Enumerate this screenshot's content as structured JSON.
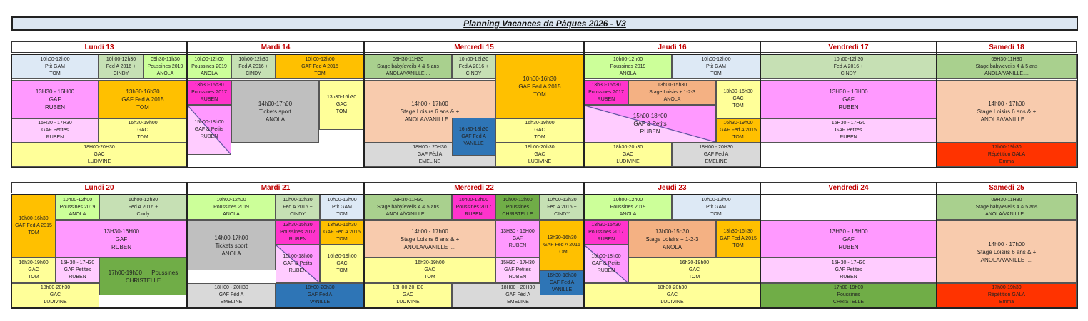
{
  "title": "Planning Vacances de Pâques 2026 - V3",
  "colors": {
    "day_header_text": "#c00000",
    "title_bg": "#dce6f1"
  },
  "weeks": [
    {
      "days": [
        "Lundi 13",
        "Mardi 14",
        "Mercredi 15",
        "Jeudi 16",
        "Vendredi 17",
        "Samedi 18"
      ],
      "blocks": [
        {
          "lines": [
            "10h00-12h00",
            "Ptit GAM",
            "TOM"
          ],
          "color": "#dde9f5"
        },
        {
          "lines": [
            "10h00-12h30",
            "Fed A 2016 +",
            "CINDY"
          ],
          "color": "#c6e0b4"
        },
        {
          "lines": [
            "09h30-11h30",
            "Poussines 2019",
            "ANOLA"
          ],
          "color": "#ccff99"
        },
        {
          "lines": [
            "13H30 - 16H00",
            "GAF",
            "RUBEN"
          ],
          "color": "#ff99ff"
        },
        {
          "lines": [
            "13h30-16h30",
            "GAF Fed A 2015",
            "TOM"
          ],
          "color": "#ffc000"
        },
        {
          "lines": [
            "15H30 - 17H30",
            "GAF Petites",
            "RUBEN"
          ],
          "color": "#ffccff"
        },
        {
          "lines": [
            "16h30-19h00",
            "GAC",
            "TOM"
          ],
          "color": "#ffff99"
        },
        {
          "lines": [
            "18H00-20H30",
            "GAC",
            "LUDIVINE"
          ],
          "color": "#ffff99"
        },
        {
          "lines": [
            "10h00-12h00",
            "Poussines 2019",
            "ANOLA"
          ],
          "color": "#ccff99"
        },
        {
          "lines": [
            "10h00-12h30",
            "Fed A 2016 +",
            "CINDY"
          ],
          "color": "#c6e0b4"
        },
        {
          "lines": [
            "10h00-12h00",
            "GAF Fed A 2015",
            "TOM"
          ],
          "color": "#ffc000"
        },
        {
          "lines": [
            "13h30-15h30",
            "Poussines 2017",
            "RUBEN"
          ],
          "color": "#ff33cc"
        },
        {
          "lines": [
            "15h00-18h00",
            "GAF & Petits",
            "RUBEN"
          ],
          "color": "diagonal"
        },
        {
          "lines": [
            "14h00-17h00",
            "Tickets sport",
            "ANOLA"
          ],
          "color": "#bfbfbf"
        },
        {
          "lines": [
            "13h30-16h30",
            "GAC",
            "TOM"
          ],
          "color": "#ffff99"
        },
        {
          "lines": [
            "09H30-11H30",
            "Stage baby/eveils 4 & 5 ans",
            "ANOLA/VANILLE...."
          ],
          "color": "#a9d08e"
        },
        {
          "lines": [
            "10h00-12h30",
            "Fed A 2016 +",
            "CINDY"
          ],
          "color": "#c6e0b4"
        },
        {
          "lines": [
            "10h00-16h30",
            "GAF Fed A 2015",
            "TOM"
          ],
          "color": "#ffc000"
        },
        {
          "lines": [
            "14h00 - 17h00",
            "Stage Loisirs 6 ans & +",
            "ANOLA/VANILLE...."
          ],
          "color": "#f8cbad"
        },
        {
          "lines": [
            "18H00 - 20H30",
            "GAF Féd A",
            "EMELINE"
          ],
          "color": "#d9d9d9"
        },
        {
          "lines": [
            "16h30-18h30",
            "GAF Fed A",
            "VANILLE"
          ],
          "color": "#2e75b6"
        },
        {
          "lines": [
            "16h30-19h00",
            "GAC",
            "TOM"
          ],
          "color": "#ffff99"
        },
        {
          "lines": [
            "18h00-20h30",
            "GAC",
            "LUDIVINE"
          ],
          "color": "#ffff99"
        },
        {
          "lines": [
            "10h00-12h00",
            "Poussines 2019",
            "ANOLA"
          ],
          "color": "#ccff99"
        },
        {
          "lines": [
            "10h00-12h00",
            "Ptit GAM",
            "TOM"
          ],
          "color": "#dde9f5"
        },
        {
          "lines": [
            "13h30-15h30",
            "Poussines 2017",
            "RUBEN"
          ],
          "color": "#ff33cc"
        },
        {
          "lines": [
            "13h00-15h30",
            "Stage Loisirs + 1-2-3",
            "ANOLA"
          ],
          "color": "#f4b183"
        },
        {
          "lines": [
            "15h00-18h00",
            "GAF & Petits",
            "RUBEN"
          ],
          "color": "diagonal"
        },
        {
          "lines": [
            "13h30-16h30",
            "GAC",
            "TOM"
          ],
          "color": "#ffff99"
        },
        {
          "lines": [
            "16h30-19h00",
            "GAF Fed A 2015",
            "TOM"
          ],
          "color": "#ffc000"
        },
        {
          "lines": [
            "18h30-20h30",
            "GAC",
            "LUDIVINE"
          ],
          "color": "#ffff99"
        },
        {
          "lines": [
            "18H00 - 20H30",
            "GAF Féd A",
            "EMELINE"
          ],
          "color": "#d9d9d9"
        },
        {
          "lines": [
            "10h00-12h30",
            "Fed A 2016 +",
            "CINDY"
          ],
          "color": "#c6e0b4"
        },
        {
          "lines": [
            "13H30 - 16H00",
            "GAF",
            "RUBEN"
          ],
          "color": "#ff99ff"
        },
        {
          "lines": [
            "15H30 - 17H30",
            "GAF Petites",
            "RUBEN"
          ],
          "color": "#ffccff"
        },
        {
          "lines": [
            "09H30-11H30",
            "Stage baby/eveils 4 & 5 ans",
            "ANOLA/VANILLE...."
          ],
          "color": "#a9d08e"
        },
        {
          "lines": [
            "14h00 - 17h00",
            "Stage Loisirs 6 ans & +",
            "ANOLA/VANILLE ...."
          ],
          "color": "#f8cbad"
        },
        {
          "lines": [
            "17h00-19h30",
            "Répétition GALA",
            "Emma"
          ],
          "color": "#ff3300"
        }
      ]
    },
    {
      "days": [
        "Lundi 20",
        "Mardi 21",
        "Mercredi 22",
        "Jeudi 23",
        "Vendredi 24",
        "Samedi 25"
      ],
      "blocks": [
        {
          "lines": [
            "10h00-16h30",
            "GAF Fed A 2015",
            "TOM"
          ],
          "color": "#ffc000"
        },
        {
          "lines": [
            "10h00-12h00",
            "Poussines 2019",
            "ANOLA"
          ],
          "color": "#ccff99"
        },
        {
          "lines": [
            "10h00-12h30",
            "Fed A 2016 +",
            "Cindy"
          ],
          "color": "#c6e0b4"
        },
        {
          "lines": [
            "13H30-16H00",
            "GAF",
            "RUBEN"
          ],
          "color": "#ff99ff"
        },
        {
          "lines": [
            "16h30-19h00",
            "GAC",
            "TOM"
          ],
          "color": "#ffff99"
        },
        {
          "lines": [
            "15H30 - 17H30",
            "GAF Petites",
            "RUBEN"
          ],
          "color": "#ffccff"
        },
        {
          "lines": [
            "17h00-19h00      Poussines",
            "CHRISTELLE"
          ],
          "color": "#70ad47"
        },
        {
          "lines": [
            "18h00-20h30",
            "GAC",
            "LUDIVINE"
          ],
          "color": "#ffff99"
        },
        {
          "lines": [
            "10h00-12h00",
            "Poussines 2019",
            "ANOLA"
          ],
          "color": "#ccff99"
        },
        {
          "lines": [
            "10h00-12h30",
            "Fed A 2016 +",
            "CINDY"
          ],
          "color": "#c6e0b4"
        },
        {
          "lines": [
            "10h00-12h00",
            "Ptit GAM",
            "TOM"
          ],
          "color": "#dde9f5"
        },
        {
          "lines": [
            "14h00-17h00",
            "Tickets sport",
            "ANOLA"
          ],
          "color": "#bfbfbf"
        },
        {
          "lines": [
            "13h30-15h30",
            "Poussines 2017",
            "RUBEN"
          ],
          "color": "#ff33cc"
        },
        {
          "lines": [
            "15h00-18h00",
            "GAF & Petits",
            "RUBEN"
          ],
          "color": "diagonal"
        },
        {
          "lines": [
            "13h30-16h30",
            "GAF Fed A 2015",
            "TOM"
          ],
          "color": "#ffc000"
        },
        {
          "lines": [
            "16h30-19h00",
            "GAC",
            "TOM"
          ],
          "color": "#ffff99"
        },
        {
          "lines": [
            "18H00 - 20H30",
            "GAF Féd A",
            "EMELINE"
          ],
          "color": "#d9d9d9"
        },
        {
          "lines": [
            "18h00-20h30",
            "GAF Fed A",
            "VANILLE"
          ],
          "color": "#2e75b6"
        },
        {
          "lines": [
            "09H30-11H30",
            "Stage baby/eveils 4 & 5 ans",
            "ANOLA/VANILLE...."
          ],
          "color": "#a9d08e"
        },
        {
          "lines": [
            "10h00-12h00",
            "Poussines 2017",
            "RUBEN"
          ],
          "color": "#ff33cc"
        },
        {
          "lines": [
            "10h00-12h00",
            "Poussines",
            "CHRISTELLE"
          ],
          "color": "#70ad47"
        },
        {
          "lines": [
            "10h00-12h30",
            "Fed A 2016 +",
            "CINDY"
          ],
          "color": "#c6e0b4"
        },
        {
          "lines": [
            "14h00 - 17h00",
            "Stage Loisirs 6 ans & +",
            "ANOLA/VANILLE ...."
          ],
          "color": "#f8cbad"
        },
        {
          "lines": [
            "13H30 - 16H00",
            "GAF",
            "RUBEN"
          ],
          "color": "#ff99ff"
        },
        {
          "lines": [
            "16h30-19h00",
            "GAC",
            "TOM"
          ],
          "color": "#ffff99"
        },
        {
          "lines": [
            "15H30 - 17H30",
            "GAF Petites",
            "RUBEN"
          ],
          "color": "#ffccff"
        },
        {
          "lines": [
            "18H00 - 20H30",
            "GAF Féd A",
            "EMELINE"
          ],
          "color": "#d9d9d9"
        },
        {
          "lines": [
            "13h30-16h30",
            "GAF Fed A 2015",
            "TOM"
          ],
          "color": "#ffc000"
        },
        {
          "lines": [
            "16h30-18h30",
            "GAF Fed A",
            "VANILLE"
          ],
          "color": "#2e75b6"
        },
        {
          "lines": [
            "18H00-20H30",
            "GAC",
            "LUDIVINE"
          ],
          "color": "#ffff99"
        },
        {
          "lines": [
            "10h00-12h00",
            "Poussines 2019",
            "ANOLA"
          ],
          "color": "#ccff99"
        },
        {
          "lines": [
            "10h00-12h00",
            "Ptit GAM",
            "TOM"
          ],
          "color": "#dde9f5"
        },
        {
          "lines": [
            "13h30-15h30",
            "Poussines 2017",
            "RUBEN"
          ],
          "color": "#ff33cc"
        },
        {
          "lines": [
            "15h00-18h00",
            "GAF & Petits",
            "RUBEN"
          ],
          "color": "diagonal"
        },
        {
          "lines": [
            "13h00-15h30",
            "Stage Loisirs + 1-2-3",
            "ANOLA"
          ],
          "color": "#f4b183"
        },
        {
          "lines": [
            "13h30-16h30",
            "GAF Fed A 2015",
            "TOM"
          ],
          "color": "#ffc000"
        },
        {
          "lines": [
            "16h30-19h00",
            "GAC",
            "TOM"
          ],
          "color": "#ffff99"
        },
        {
          "lines": [
            "18h30-20h30",
            "GAC",
            "LUDIVINE"
          ],
          "color": "#ffff99"
        },
        {
          "lines": [
            "13H30 - 16H00",
            "GAF",
            "RUBEN"
          ],
          "color": "#ff99ff"
        },
        {
          "lines": [
            "15H30 - 17H30",
            "GAF Petites",
            "RUBEN"
          ],
          "color": "#ffccff"
        },
        {
          "lines": [
            "17h00-19h00",
            "Poussines",
            "CHRISTELLE"
          ],
          "color": "#70ad47"
        },
        {
          "lines": [
            "09H30-11H30",
            "Stage baby/eveils 4 & 5 ans",
            "ANOLA/VANILLE..."
          ],
          "color": "#a9d08e"
        },
        {
          "lines": [
            "14h00 - 17h00",
            "Stage Loisirs 6 ans & +",
            "ANOLA/VANILLE ...."
          ],
          "color": "#f8cbad"
        },
        {
          "lines": [
            "17h00-19h30",
            "Répétition GALA",
            "Emma"
          ],
          "color": "#ff3300"
        }
      ]
    }
  ]
}
